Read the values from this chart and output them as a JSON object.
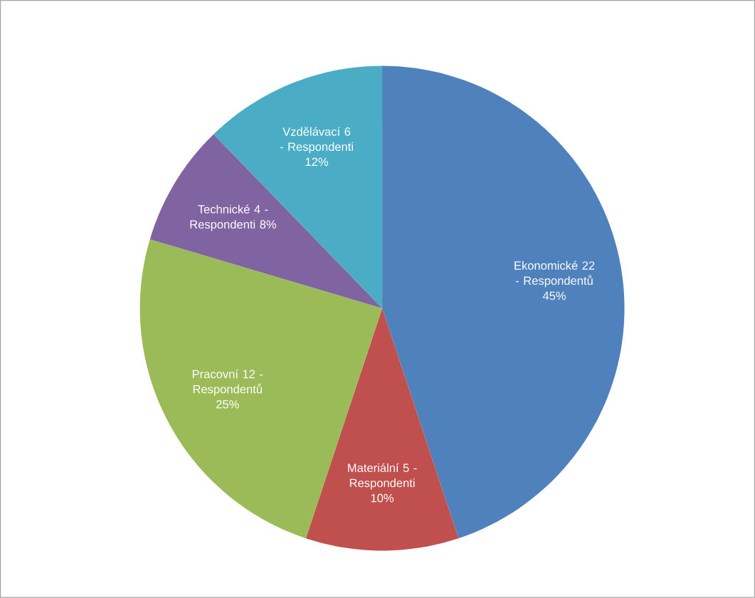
{
  "chart_data": {
    "type": "pie",
    "categories": [
      "Ekonomické",
      "Materiální",
      "Pracovní",
      "Technické",
      "Vzdělávací"
    ],
    "values": [
      22,
      5,
      12,
      4,
      6
    ],
    "value_labels": [
      "22 - Respondentů 45%",
      "5 - Respondenti 10%",
      "12 - Respondentů 25%",
      "4 - Respondenti 8%",
      "6 - Respondenti 12%"
    ],
    "colors": [
      "#4f81bd",
      "#c0504d",
      "#9bbb59",
      "#8064a2",
      "#4bacc6"
    ]
  }
}
